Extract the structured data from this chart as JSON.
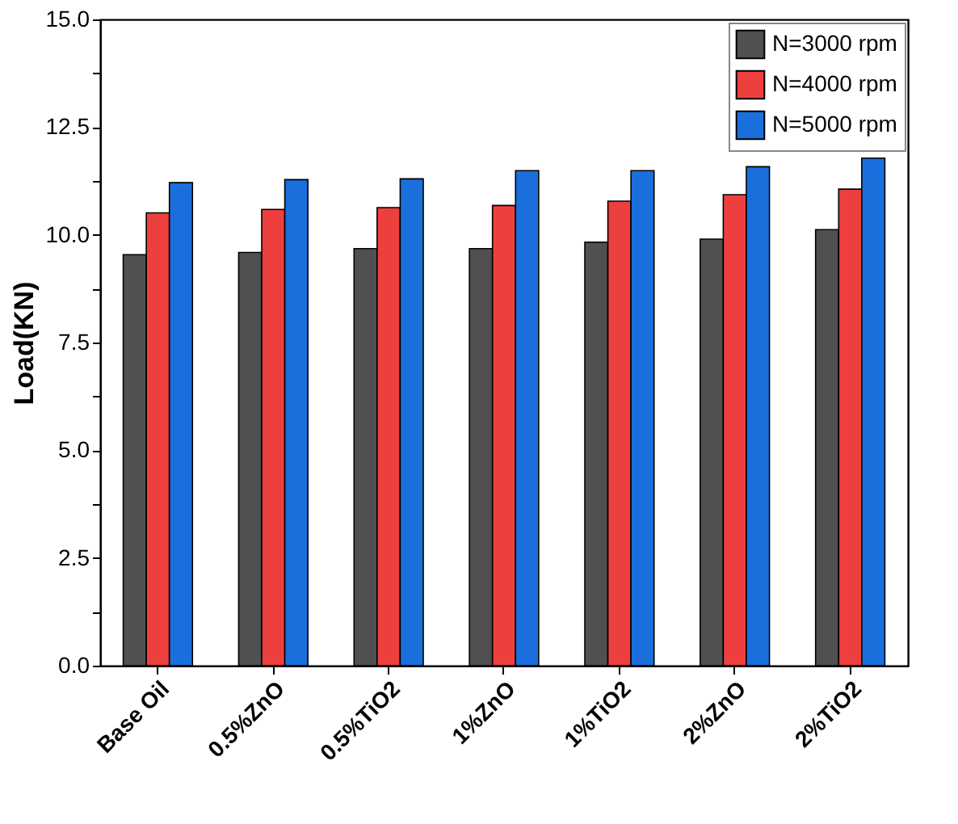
{
  "chart_data": {
    "type": "bar",
    "ylabel": "Load(KN)",
    "categories": [
      "Base Oil",
      "0.5%ZnO",
      "0.5%TiO2",
      "1%ZnO",
      "1%TiO2",
      "2%ZnO",
      "2%TiO2"
    ],
    "series": [
      {
        "name": "N=3000 rpm",
        "color": "#505050",
        "values": [
          9.54,
          9.59,
          9.68,
          9.68,
          9.83,
          9.9,
          10.12
        ]
      },
      {
        "name": "N=4000 rpm",
        "color": "#ee3f3f",
        "values": [
          10.51,
          10.59,
          10.63,
          10.68,
          10.78,
          10.93,
          11.06
        ]
      },
      {
        "name": "N=5000 rpm",
        "color": "#1b6fdd",
        "values": [
          11.21,
          11.28,
          11.3,
          11.49,
          11.49,
          11.58,
          11.78
        ]
      }
    ],
    "ylim": [
      0,
      15
    ],
    "yticks": [
      {
        "value": 0,
        "label": "0.0"
      },
      {
        "value": 1.25,
        "label": null
      },
      2.5,
      {
        "value": 3.75,
        "label": null
      },
      {
        "value": 5,
        "label": "5.0"
      },
      {
        "value": 6.25,
        "label": null
      },
      7.5,
      {
        "value": 8.75,
        "label": null
      },
      {
        "value": 10,
        "label": "10.0"
      },
      {
        "value": 11.25,
        "label": null
      },
      12.5,
      {
        "value": 13.75,
        "label": null
      },
      {
        "value": 15,
        "label": "15.0"
      }
    ],
    "legend": "top right",
    "grid": false
  }
}
